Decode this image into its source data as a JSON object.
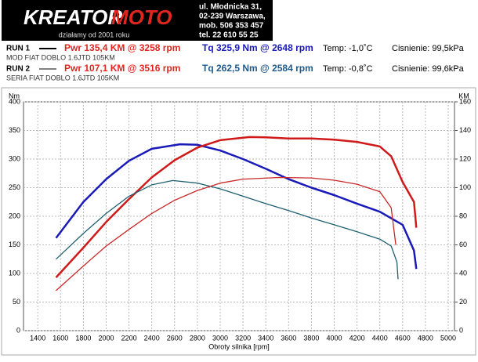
{
  "chart_data": {
    "type": "line",
    "logo": [
      "KREATOR",
      "MOTO"
    ],
    "tagline": "działamy od 2001 roku",
    "address": [
      "ul. Młodnicka 31,",
      "02-239  Warszawa,",
      "mob.  506 353 457",
      "tel.  22 610 55 25"
    ],
    "runs": [
      {
        "label": "RUN 1",
        "power": "Pwr  135,4 KM @ 3258 rpm",
        "torque": "Tq  325,9 Nm @ 2648 rpm",
        "temp": "Temp: -1,0˚C",
        "pressure": "Cisnienie: 99,5kPa",
        "description": "MOD FIAT DOBLO 1.6JTD 105KM"
      },
      {
        "label": "RUN 2",
        "power": "Pwr  107,1 KM @ 3516 rpm",
        "torque": "Tq  262,5 Nm @ 2584 rpm",
        "temp": "Temp: -0,8˚C",
        "pressure": "Cisnienie: 99,6kPa",
        "description": "SERIA FIAT DOBLO 1.6JTD 105KM"
      }
    ],
    "y_label": "Nm",
    "y2_label": "KM",
    "x_label": "Obroty silnika [rpm]",
    "xlim": [
      1275,
      5055
    ],
    "xticks": [
      1400,
      1600,
      1800,
      2000,
      2200,
      2400,
      2600,
      2800,
      3000,
      3200,
      3400,
      3600,
      3800,
      4000,
      4200,
      4400,
      4600,
      4800,
      5000
    ],
    "ylim": [
      0,
      400
    ],
    "yticks": [
      0,
      50,
      100,
      150,
      200,
      250,
      300,
      350,
      400
    ],
    "y2lim": [
      0,
      160
    ],
    "y2ticks": [
      0,
      20,
      40,
      60,
      80,
      100,
      120,
      140,
      160
    ],
    "grid": true,
    "series": [
      {
        "color": "#1a1ab8",
        "width": 2.5,
        "axis": "y",
        "x": [
          1560,
          1800,
          2000,
          2200,
          2400,
          2648,
          2800,
          3000,
          3200,
          3400,
          3600,
          3800,
          4000,
          4200,
          4400,
          4600,
          4700,
          4720
        ],
        "values": [
          162,
          225,
          265,
          297,
          318,
          325.9,
          325,
          315,
          300,
          283,
          265,
          250,
          237,
          222,
          208,
          185,
          140,
          108
        ]
      },
      {
        "color": "#d01a1a",
        "width": 2.5,
        "axis": "y2",
        "x": [
          1560,
          1800,
          2000,
          2200,
          2400,
          2600,
          2800,
          3000,
          3258,
          3400,
          3600,
          3800,
          4000,
          4200,
          4400,
          4500,
          4600,
          4700,
          4720
        ],
        "values": [
          37.2,
          58,
          76,
          92,
          107.2,
          119.2,
          128,
          133.2,
          135.4,
          135.2,
          134.4,
          134.4,
          133.6,
          132,
          128.8,
          122,
          104,
          90,
          72
        ]
      },
      {
        "color": "#1f6070",
        "width": 1.3,
        "axis": "y",
        "x": [
          1560,
          1800,
          2000,
          2200,
          2400,
          2584,
          2800,
          3000,
          3200,
          3400,
          3600,
          3800,
          4000,
          4200,
          4400,
          4500,
          4550,
          4560
        ],
        "values": [
          125,
          170,
          205,
          235,
          255,
          262.5,
          258,
          248,
          235,
          222,
          210,
          197,
          185,
          173,
          160,
          148,
          120,
          90
        ]
      },
      {
        "color": "#c82828",
        "width": 1.3,
        "axis": "y2",
        "x": [
          1560,
          1800,
          2000,
          2200,
          2400,
          2600,
          2800,
          3000,
          3200,
          3516,
          3800,
          4000,
          4200,
          4400,
          4500,
          4540
        ],
        "values": [
          28,
          45.2,
          59.2,
          70.8,
          82,
          91.2,
          98,
          103.2,
          106,
          107.1,
          106.8,
          105.2,
          102.4,
          97.2,
          86,
          60
        ]
      }
    ]
  }
}
